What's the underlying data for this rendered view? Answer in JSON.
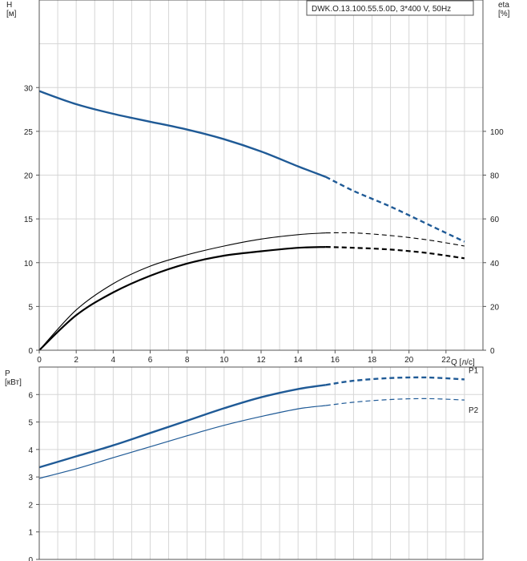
{
  "chart_data": [
    {
      "type": "line",
      "title": "DWK.O.13.100.55.5.0D, 3*400 V, 50Hz",
      "xlabel": "Q [л/с]",
      "ylabel": "H\n[м]",
      "y2label": "eta\n[%]",
      "xlim": [
        0,
        24
      ],
      "ylim": [
        0,
        40
      ],
      "y2lim": [
        0,
        160
      ],
      "xticks": [
        0,
        2,
        4,
        6,
        8,
        10,
        12,
        14,
        16,
        18,
        20,
        22
      ],
      "yticks": [
        0,
        5,
        10,
        15,
        20,
        25,
        30
      ],
      "y2ticks": [
        0,
        20,
        40,
        60,
        80,
        100
      ],
      "grid": true,
      "series": [
        {
          "name": "",
          "axis": "left",
          "color": "#1f5a96",
          "x": [
            0,
            2,
            4,
            6,
            8,
            10,
            12,
            14,
            15.5
          ],
          "y": [
            29.6,
            28.1,
            27.0,
            26.1,
            25.2,
            24.1,
            22.7,
            21.0,
            19.8
          ],
          "dashed_x": [
            15.5,
            17,
            19,
            21,
            23
          ],
          "dashed_y": [
            19.8,
            18.2,
            16.4,
            14.4,
            12.4
          ]
        },
        {
          "name": "",
          "axis": "left",
          "color": "#000000",
          "x": [
            0,
            2,
            4,
            6,
            8,
            10,
            12,
            14,
            15.5
          ],
          "y": [
            0,
            4.0,
            6.6,
            8.5,
            9.9,
            10.8,
            11.3,
            11.7,
            11.8
          ],
          "dashed_x": [
            15.5,
            17,
            19,
            21,
            23
          ],
          "dashed_y": [
            11.8,
            11.7,
            11.5,
            11.1,
            10.5
          ]
        },
        {
          "name": "",
          "axis": "left",
          "color": "#000000",
          "x": [
            0,
            2,
            4,
            6,
            8,
            10,
            12,
            14,
            15.5
          ],
          "y": [
            0,
            4.6,
            7.6,
            9.6,
            10.9,
            11.9,
            12.7,
            13.2,
            13.4
          ],
          "dashed_x": [
            15.5,
            17,
            19,
            21,
            23
          ],
          "dashed_y": [
            13.4,
            13.4,
            13.1,
            12.6,
            11.9
          ]
        }
      ]
    },
    {
      "type": "line",
      "ylabel": "P\n[кВт]",
      "xlim": [
        0,
        24
      ],
      "ylim": [
        0,
        7
      ],
      "yticks": [
        0,
        1,
        2,
        3,
        4,
        5,
        6
      ],
      "grid": true,
      "series": [
        {
          "name": "P1",
          "color": "#1f5a96",
          "x": [
            0,
            2,
            4,
            6,
            8,
            10,
            12,
            14,
            15.5
          ],
          "y": [
            3.35,
            3.75,
            4.15,
            4.6,
            5.05,
            5.5,
            5.9,
            6.2,
            6.35
          ],
          "dashed_x": [
            15.5,
            17,
            19,
            21,
            23
          ],
          "dashed_y": [
            6.35,
            6.5,
            6.6,
            6.62,
            6.55
          ]
        },
        {
          "name": "P2",
          "color": "#1f5a96",
          "x": [
            0,
            2,
            4,
            6,
            8,
            10,
            12,
            14,
            15.5
          ],
          "y": [
            2.95,
            3.3,
            3.7,
            4.1,
            4.5,
            4.88,
            5.2,
            5.48,
            5.6
          ],
          "dashed_x": [
            15.5,
            17,
            19,
            21,
            23
          ],
          "dashed_y": [
            5.6,
            5.72,
            5.82,
            5.85,
            5.8
          ]
        }
      ]
    }
  ]
}
